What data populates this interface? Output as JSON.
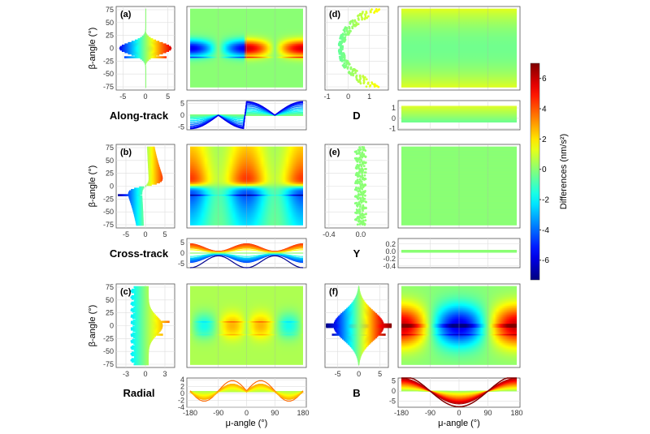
{
  "chart_data": {
    "type": "heatmap",
    "colorbar": {
      "label": "Differences (nm/s²)",
      "range": [
        -7.3,
        7.0
      ],
      "ticks": [
        "6",
        "4",
        "2",
        "0",
        "-2",
        "-4",
        "-6"
      ],
      "colormap": "jet"
    },
    "shared": {
      "ylabel": "β-angle (°)",
      "xlabel": "μ-angle (°)",
      "beta_range": [
        -75,
        75
      ],
      "mu_range": [
        -180,
        180
      ],
      "beta_ticks": [
        "75",
        "50",
        "25",
        "0",
        "-25",
        "-50",
        "-75"
      ],
      "mu_ticks": [
        "-180",
        "-90",
        "0",
        "90",
        "180"
      ]
    },
    "panels": [
      {
        "id": "a",
        "tag": "(a)",
        "title": "Along-track",
        "profile_xlim": [
          -6.5,
          6.5
        ],
        "profile_xticks": [
          "-5",
          "0",
          "5"
        ],
        "strip_ylim": [
          -6.2,
          6.2
        ],
        "strip_yticks": [
          "5",
          "0",
          "-5"
        ],
        "peak": 6,
        "pattern": "antisymmetric in mu, peaks near beta 0"
      },
      {
        "id": "d",
        "tag": "(d)",
        "title": "D",
        "profile_xlim": [
          -1.1,
          1.9
        ],
        "profile_xticks": [
          "-1",
          "0",
          "1"
        ],
        "strip_ylim": [
          -1.1,
          1.7
        ],
        "strip_yticks": [
          "1",
          "0",
          "-1"
        ],
        "peak": 1.7,
        "pattern": "function of beta only"
      },
      {
        "id": "b",
        "tag": "(b)",
        "title": "Cross-track",
        "profile_xlim": [
          -7.5,
          7.5
        ],
        "profile_xticks": [
          "-5",
          "0",
          "5"
        ],
        "strip_ylim": [
          -7,
          7
        ],
        "strip_yticks": [
          "5",
          "0",
          "-5"
        ],
        "peak": 6.5,
        "pattern": "sign follows beta"
      },
      {
        "id": "e",
        "tag": "(e)",
        "title": "Y",
        "profile_xlim": [
          -0.45,
          0.35
        ],
        "profile_xticks": [
          "-0.4",
          "0.0"
        ],
        "strip_ylim": [
          -0.45,
          0.35
        ],
        "strip_yticks": [
          "0.2",
          "0.0",
          "-0.2",
          "-0.4"
        ],
        "peak": 0.3,
        "pattern": "near zero"
      },
      {
        "id": "c",
        "tag": "(c)",
        "title": "Radial",
        "profile_xlim": [
          -4.5,
          4.5
        ],
        "profile_xticks": [
          "-3",
          "0",
          "3"
        ],
        "strip_ylim": [
          -4,
          4.5
        ],
        "strip_yticks": [
          "4",
          "2",
          "0",
          "-2",
          "-4"
        ],
        "peak": 4.3,
        "pattern": "positive near mu ±45, negative near ±135"
      },
      {
        "id": "f",
        "tag": "(f)",
        "title": "B",
        "profile_xlim": [
          -8,
          7
        ],
        "profile_xticks": [
          "-5",
          "0",
          "5"
        ],
        "strip_ylim": [
          -8,
          6.5
        ],
        "strip_yticks": [
          "5",
          "0",
          "-5"
        ],
        "peak": 7,
        "pattern": "-cos(mu), strongest near beta 0"
      }
    ]
  }
}
